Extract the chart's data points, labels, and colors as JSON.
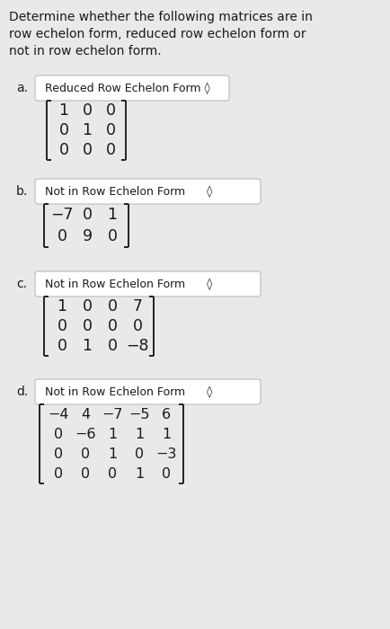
{
  "background_color": "#e9e9e9",
  "text_color": "#1a1a1a",
  "title_lines": [
    "Determine whether the following matrices are in",
    "row echelon form, reduced row echelon form or",
    "not in row echelon form."
  ],
  "parts": [
    {
      "label": "a.",
      "answer": "Reduced Row Echelon Form ◊",
      "matrix": [
        [
          "1",
          "0",
          "0"
        ],
        [
          "0",
          "1",
          "0"
        ],
        [
          "0",
          "0",
          "0"
        ]
      ]
    },
    {
      "label": "b.",
      "answer": "Not in Row Echelon Form      ◊",
      "matrix": [
        [
          "−7",
          "0",
          "1"
        ],
        [
          "0",
          "9",
          "0"
        ]
      ]
    },
    {
      "label": "c.",
      "answer": "Not in Row Echelon Form      ◊",
      "matrix": [
        [
          "1",
          "0",
          "0",
          "7"
        ],
        [
          "0",
          "0",
          "0",
          "0"
        ],
        [
          "0",
          "1",
          "0",
          "−8"
        ]
      ]
    },
    {
      "label": "d.",
      "answer": "Not in Row Echelon Form      ◊",
      "matrix": [
        [
          "−4",
          "4",
          "−7",
          "−5",
          "6"
        ],
        [
          "0",
          "−6",
          "1",
          "1",
          "1"
        ],
        [
          "0",
          "0",
          "1",
          "0",
          "−3"
        ],
        [
          "0",
          "0",
          "0",
          "1",
          "0"
        ]
      ]
    }
  ]
}
